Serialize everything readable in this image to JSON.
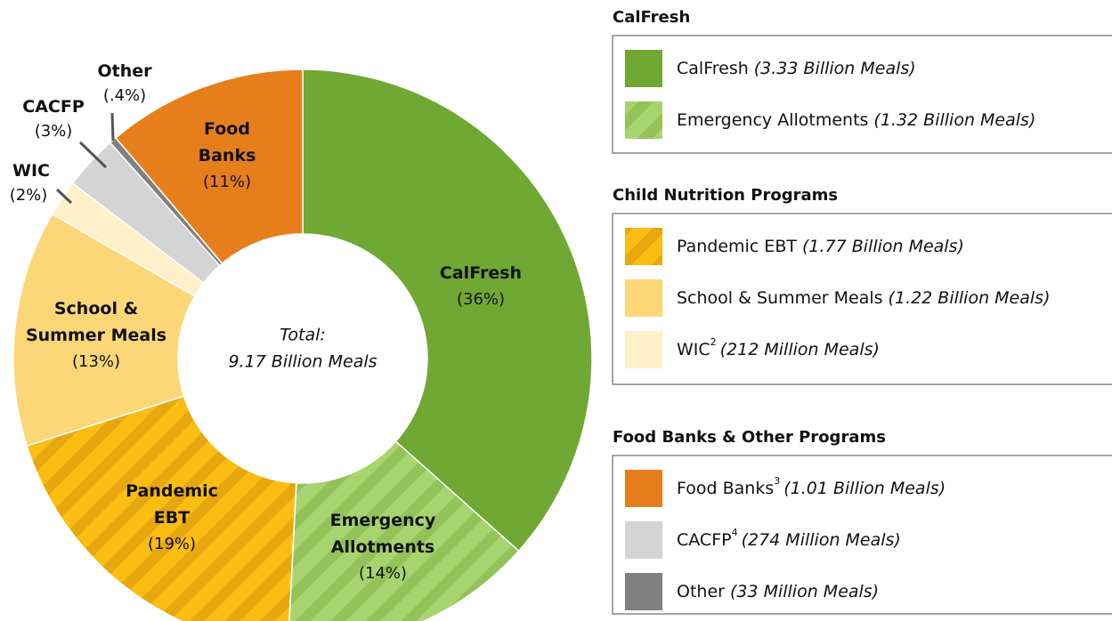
{
  "chart_data": {
    "type": "donut",
    "center_text": [
      "Total:",
      "9.17 Billion Meals"
    ],
    "categories": [
      "CalFresh",
      "Emergency Allotments",
      "Pandemic EBT",
      "School & Summer Meals",
      "WIC",
      "CACFP",
      "Other",
      "Food Banks"
    ],
    "values": [
      36,
      14,
      19,
      13,
      2,
      3,
      0.4,
      11
    ],
    "value_labels": [
      "(36%)",
      "(14%)",
      "(19%)",
      "(13%)",
      "(2%)",
      "(3%)",
      "(.4%)",
      "(11%)"
    ],
    "colors": [
      "#6fa832",
      "#a8d46f",
      "#fbbd12",
      "#fdd677",
      "#fff0c9",
      "#d4d4d4",
      "#808080",
      "#e67f1b"
    ],
    "hatch_colors": [
      null,
      "#92c258",
      "#e6a70f",
      null,
      null,
      null,
      null,
      null
    ],
    "legend": {
      "groups": [
        {
          "title": "CalFresh",
          "items": [
            {
              "name": "CalFresh",
              "detail": "(3.33 Billion Meals)"
            },
            {
              "name": "Emergency Allotments",
              "detail": "(1.32 Billion Meals)"
            }
          ]
        },
        {
          "title": "Child Nutrition Programs",
          "items": [
            {
              "name": "Pandemic EBT",
              "detail": "(1.77 Billion Meals)"
            },
            {
              "name": "School & Summer Meals",
              "detail": "(1.22 Billion Meals)"
            },
            {
              "name": "WIC",
              "sup": "2",
              "detail": "(212 Million Meals)"
            }
          ]
        },
        {
          "title": "Food Banks & Other Programs",
          "items": [
            {
              "name": "Food Banks",
              "sup": "3",
              "detail": "(1.01 Billion Meals)"
            },
            {
              "name": "CACFP",
              "sup": "4",
              "detail": "(274 Million Meals)"
            },
            {
              "name": "Other",
              "detail": "(33 Million Meals)"
            }
          ]
        }
      ]
    }
  }
}
